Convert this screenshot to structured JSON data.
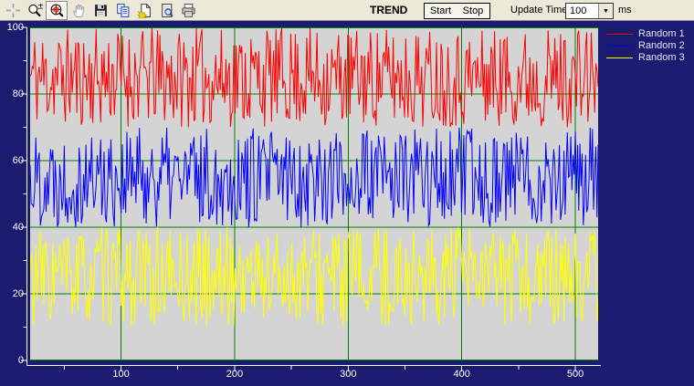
{
  "toolbar": {
    "title": "TREND",
    "start_label": "Start",
    "stop_label": "Stop",
    "update_time_label": "Update Time:",
    "update_time_value": "100",
    "update_time_unit": "ms",
    "icons": [
      "crosshair-icon",
      "zoom-in-out-icon",
      "zoom-region-icon (selected)",
      "pan-hand-icon",
      "save-icon",
      "copy-icon",
      "export-icon",
      "print-preview-icon",
      "print-icon"
    ]
  },
  "chart_data": {
    "type": "line",
    "title": "TREND",
    "x_range": [
      20,
      520
    ],
    "y_range": [
      0,
      100
    ],
    "x_ticks": [
      100,
      200,
      300,
      400,
      500
    ],
    "x_minor_ticks": [
      50,
      150,
      250,
      350,
      450
    ],
    "y_ticks": [
      0,
      20,
      40,
      60,
      80,
      100
    ],
    "y_minor_ticks": [
      10,
      30,
      50,
      70,
      90
    ],
    "grid": true,
    "grid_color": "#008000",
    "plot_bg": "#d4d4d4",
    "axis_color": "#ffffff",
    "window_bg": "#1b1b6f",
    "legend_position": "top-right",
    "series": [
      {
        "name": "Random 1",
        "color": "#ff0000",
        "min": 70,
        "max": 100,
        "points": 500,
        "seed": 11,
        "description": "dense uniform random noise oscillating between 70 and 100"
      },
      {
        "name": "Random 2",
        "color": "#0000ff",
        "min": 40,
        "max": 70,
        "points": 500,
        "seed": 22,
        "description": "dense uniform random noise oscillating between 40 and 70"
      },
      {
        "name": "Random 3",
        "color": "#ffff00",
        "min": 10,
        "max": 40,
        "points": 500,
        "seed": 33,
        "description": "dense uniform random noise oscillating between 10 and 40"
      }
    ]
  }
}
